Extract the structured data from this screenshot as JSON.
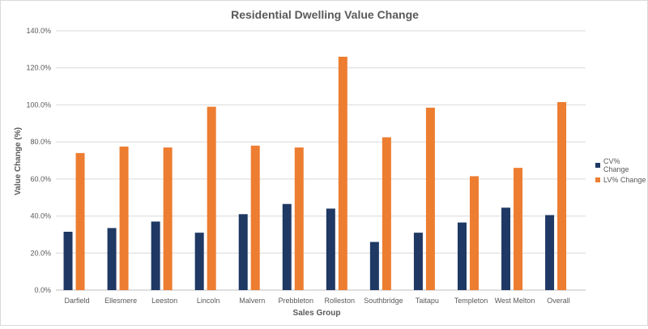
{
  "chart_data": {
    "type": "bar",
    "title": "Residential Dwelling Value Change",
    "xlabel": "Sales Group",
    "ylabel": "Value Change (%)",
    "ylim": [
      0,
      140
    ],
    "yticks": [
      "0.0%",
      "20.0%",
      "40.0%",
      "60.0%",
      "80.0%",
      "100.0%",
      "120.0%",
      "140.0%"
    ],
    "grid": true,
    "legend_position": "right",
    "categories": [
      "Darfield",
      "Ellesmere",
      "Leeston",
      "Lincoln",
      "Malvern",
      "Prebbleton",
      "Rolleston",
      "Southbridge",
      "Taitapu",
      "Templeton",
      "West Melton",
      "Overall"
    ],
    "series": [
      {
        "name": "CV% Change",
        "color": "#1f3864",
        "values": [
          31.5,
          33.5,
          37,
          31,
          41,
          46.5,
          44,
          26,
          31,
          36.5,
          44.5,
          40.5
        ]
      },
      {
        "name": "LV% Change",
        "color": "#ed7d31",
        "values": [
          74,
          77.5,
          77,
          99,
          78,
          77,
          126,
          82.5,
          98.5,
          61.5,
          66,
          101.5
        ]
      }
    ]
  }
}
